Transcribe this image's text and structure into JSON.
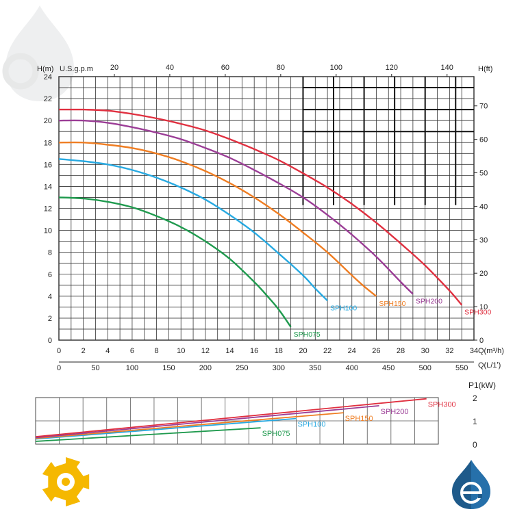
{
  "chart_data": [
    {
      "type": "line",
      "xlabel": "Q(m³/h)",
      "ylabel": "H(m)",
      "y2label": "H(ft)",
      "top_axis_label": "U.S.g.p.m",
      "bottom_axis2_label": "Q(L/1ʹ)",
      "xlim": [
        0,
        34
      ],
      "ylim": [
        0,
        24
      ],
      "xticks": [
        0,
        2,
        4,
        6,
        8,
        10,
        12,
        14,
        16,
        18,
        20,
        22,
        24,
        26,
        28,
        30,
        32,
        34
      ],
      "yticks": [
        0,
        2,
        4,
        6,
        8,
        10,
        12,
        14,
        16,
        18,
        20,
        22,
        24
      ],
      "top_ticks": [
        20,
        40,
        60,
        80,
        100,
        120,
        140
      ],
      "right_ticks": [
        0,
        10,
        20,
        30,
        40,
        50,
        60,
        70
      ],
      "lpm_ticks": [
        0,
        50,
        100,
        150,
        200,
        250,
        300,
        350,
        400,
        450,
        500,
        550
      ],
      "grid": true,
      "series": [
        {
          "name": "SPH075",
          "color": "#1f9a4e",
          "x": [
            0,
            2,
            4,
            6,
            8,
            10,
            12,
            14,
            16,
            17,
            18,
            19
          ],
          "y": [
            13,
            12.9,
            12.6,
            12.1,
            11.3,
            10.3,
            9.0,
            7.4,
            5.3,
            4.1,
            2.8,
            1.2
          ]
        },
        {
          "name": "SPH100",
          "color": "#27a9e1",
          "x": [
            0,
            2,
            4,
            6,
            8,
            10,
            12,
            14,
            16,
            18,
            20,
            21,
            22
          ],
          "y": [
            16.5,
            16.3,
            16.0,
            15.5,
            14.8,
            13.9,
            12.8,
            11.4,
            9.8,
            7.9,
            5.9,
            4.7,
            3.6
          ]
        },
        {
          "name": "SPH150",
          "color": "#ef7d22",
          "x": [
            0,
            2,
            4,
            6,
            8,
            10,
            12,
            14,
            16,
            18,
            20,
            22,
            24,
            25,
            26
          ],
          "y": [
            18,
            18.0,
            17.8,
            17.5,
            17.0,
            16.3,
            15.4,
            14.3,
            13.0,
            11.5,
            9.8,
            8.0,
            5.9,
            4.9,
            4.0
          ]
        },
        {
          "name": "SPH200",
          "color": "#9b3d96",
          "x": [
            0,
            2,
            4,
            6,
            8,
            10,
            12,
            14,
            16,
            18,
            20,
            22,
            24,
            26,
            28,
            29
          ],
          "y": [
            20,
            20.0,
            19.8,
            19.4,
            18.9,
            18.3,
            17.5,
            16.6,
            15.5,
            14.3,
            13.0,
            11.4,
            9.6,
            7.6,
            5.3,
            4.2
          ]
        },
        {
          "name": "SPH300",
          "color": "#e03040",
          "x": [
            0,
            2,
            4,
            6,
            8,
            10,
            12,
            14,
            16,
            18,
            20,
            22,
            24,
            26,
            28,
            30,
            32,
            33
          ],
          "y": [
            21,
            21.0,
            20.9,
            20.6,
            20.2,
            19.7,
            19.1,
            18.3,
            17.4,
            16.4,
            15.2,
            13.9,
            12.4,
            10.7,
            8.8,
            6.8,
            4.5,
            3.2
          ]
        }
      ]
    },
    {
      "type": "line",
      "ylabel": "P1(kW)",
      "xlim": [
        0,
        34
      ],
      "ylim": [
        0,
        2
      ],
      "yticks": [
        0,
        1,
        2
      ],
      "grid": true,
      "series": [
        {
          "name": "SPH075",
          "color": "#1f9a4e",
          "x": [
            0,
            19
          ],
          "y": [
            0.12,
            0.7
          ]
        },
        {
          "name": "SPH100",
          "color": "#27a9e1",
          "x": [
            0,
            22
          ],
          "y": [
            0.22,
            1.1
          ]
        },
        {
          "name": "SPH150",
          "color": "#ef7d22",
          "x": [
            0,
            26
          ],
          "y": [
            0.25,
            1.35
          ]
        },
        {
          "name": "SPH200",
          "color": "#9b3d96",
          "x": [
            0,
            29
          ],
          "y": [
            0.28,
            1.65
          ]
        },
        {
          "name": "SPH300",
          "color": "#e03040",
          "x": [
            0,
            33
          ],
          "y": [
            0.32,
            1.95
          ]
        }
      ]
    }
  ],
  "logos": {
    "left_icon": "gear-logo-icon",
    "left_color": "#f5b800",
    "right_icon": "water-drop-e-logo-icon",
    "right_color": "#1e5a8a",
    "watermark_icon": "water-drop-e-watermark-icon"
  }
}
